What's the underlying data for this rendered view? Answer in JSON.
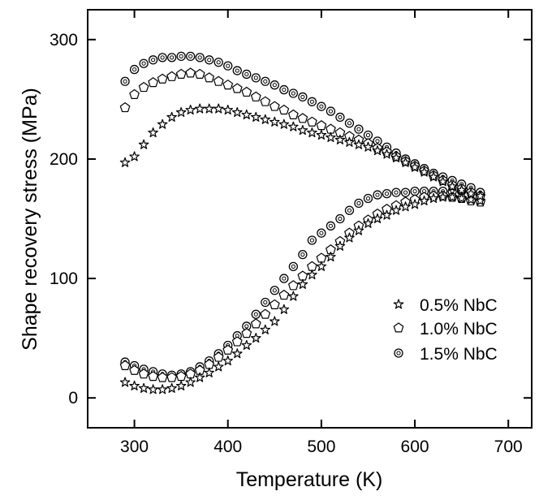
{
  "chart_data": {
    "type": "scatter",
    "title": "",
    "xlabel": "Temperature (K)",
    "ylabel": "Shape recovery stress (MPa)",
    "xlim": [
      250,
      725
    ],
    "ylim": [
      -25,
      325
    ],
    "xticks": [
      300,
      400,
      500,
      600,
      700
    ],
    "yticks": [
      0,
      100,
      200,
      300
    ],
    "grid": false,
    "legend_position": "lower-right",
    "marker_color": "#000000",
    "series": [
      {
        "name": "0.5% NbC",
        "marker": "star",
        "heating": {
          "x": [
            290,
            300,
            310,
            320,
            330,
            340,
            350,
            360,
            370,
            380,
            390,
            400,
            410,
            420,
            430,
            440,
            450,
            460,
            470,
            480,
            490,
            500,
            510,
            520,
            530,
            540,
            550,
            560,
            570,
            580,
            590,
            600,
            610,
            620,
            630,
            640,
            650,
            660,
            670
          ],
          "y": [
            13,
            10,
            8,
            7,
            7,
            8,
            10,
            13,
            17,
            21,
            26,
            31,
            37,
            44,
            50,
            57,
            64,
            74,
            85,
            95,
            103,
            110,
            118,
            127,
            134,
            140,
            146,
            150,
            153,
            157,
            160,
            162,
            165,
            167,
            168,
            168,
            167,
            166,
            165
          ]
        },
        "cooling": {
          "x": [
            670,
            660,
            650,
            640,
            630,
            620,
            610,
            600,
            590,
            580,
            570,
            560,
            550,
            540,
            530,
            520,
            510,
            500,
            490,
            480,
            470,
            460,
            450,
            440,
            430,
            420,
            410,
            400,
            390,
            380,
            370,
            360,
            350,
            340,
            330,
            320,
            310,
            300,
            290
          ],
          "y": [
            169,
            171,
            174,
            177,
            181,
            185,
            189,
            193,
            197,
            201,
            204,
            207,
            210,
            212,
            214,
            216,
            218,
            220,
            222,
            224,
            227,
            229,
            231,
            233,
            235,
            237,
            239,
            241,
            242,
            242,
            242,
            241,
            239,
            235,
            229,
            222,
            212,
            202,
            197
          ]
        }
      },
      {
        "name": "1.0% NbC",
        "marker": "pentagon",
        "heating": {
          "x": [
            290,
            300,
            310,
            320,
            330,
            340,
            350,
            360,
            370,
            380,
            390,
            400,
            410,
            420,
            430,
            440,
            450,
            460,
            470,
            480,
            490,
            500,
            510,
            520,
            530,
            540,
            550,
            560,
            570,
            580,
            590,
            600,
            610,
            620,
            630,
            640,
            650,
            660,
            670
          ],
          "y": [
            27,
            23,
            20,
            18,
            17,
            17,
            18,
            20,
            23,
            28,
            34,
            40,
            47,
            54,
            62,
            70,
            78,
            86,
            94,
            102,
            110,
            117,
            124,
            131,
            138,
            144,
            149,
            154,
            158,
            161,
            164,
            166,
            168,
            169,
            169,
            168,
            167,
            165,
            164
          ]
        },
        "cooling": {
          "x": [
            670,
            660,
            650,
            640,
            630,
            620,
            610,
            600,
            590,
            580,
            570,
            560,
            550,
            540,
            530,
            520,
            510,
            500,
            490,
            480,
            470,
            460,
            450,
            440,
            430,
            420,
            410,
            400,
            390,
            380,
            370,
            360,
            350,
            340,
            330,
            320,
            310,
            300,
            290
          ],
          "y": [
            169,
            172,
            175,
            178,
            182,
            186,
            190,
            194,
            198,
            202,
            206,
            209,
            213,
            216,
            219,
            222,
            225,
            228,
            231,
            234,
            237,
            241,
            244,
            248,
            252,
            256,
            259,
            262,
            265,
            268,
            271,
            272,
            271,
            269,
            267,
            264,
            260,
            254,
            243
          ]
        }
      },
      {
        "name": "1.5% NbC",
        "marker": "circle",
        "heating": {
          "x": [
            290,
            300,
            310,
            320,
            330,
            340,
            350,
            360,
            370,
            380,
            390,
            400,
            410,
            420,
            430,
            440,
            450,
            460,
            470,
            480,
            490,
            500,
            510,
            520,
            530,
            540,
            550,
            560,
            570,
            580,
            590,
            600,
            610,
            620,
            630,
            640,
            650,
            660,
            670
          ],
          "y": [
            30,
            27,
            24,
            22,
            20,
            19,
            20,
            22,
            26,
            31,
            37,
            44,
            52,
            60,
            70,
            80,
            90,
            100,
            110,
            120,
            132,
            138,
            144,
            150,
            157,
            163,
            167,
            170,
            171,
            172,
            172,
            173,
            173,
            173,
            173,
            173,
            173,
            173,
            172
          ]
        },
        "cooling": {
          "x": [
            670,
            660,
            650,
            640,
            630,
            620,
            610,
            600,
            590,
            580,
            570,
            560,
            550,
            540,
            530,
            520,
            510,
            500,
            490,
            480,
            470,
            460,
            450,
            440,
            430,
            420,
            410,
            400,
            390,
            380,
            370,
            360,
            350,
            340,
            330,
            320,
            310,
            300,
            290
          ],
          "y": [
            172,
            176,
            179,
            182,
            185,
            188,
            192,
            196,
            200,
            205,
            210,
            215,
            220,
            225,
            230,
            235,
            240,
            244,
            248,
            252,
            255,
            258,
            262,
            265,
            268,
            271,
            274,
            278,
            281,
            283,
            285,
            286,
            286,
            285,
            285,
            283,
            280,
            275,
            265
          ]
        }
      }
    ]
  }
}
